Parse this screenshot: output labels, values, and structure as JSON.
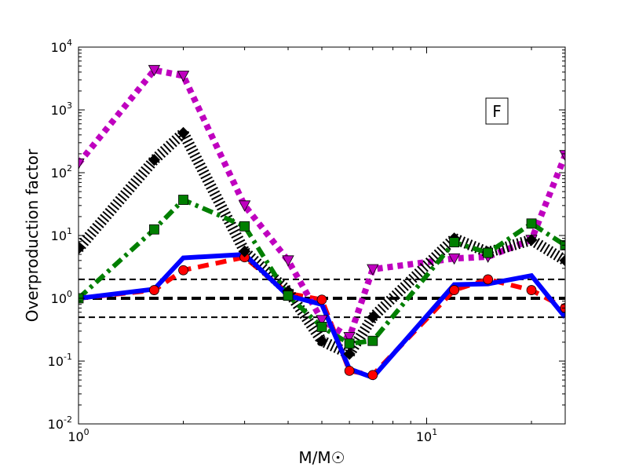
{
  "chart_data": {
    "type": "line",
    "xscale": "log",
    "yscale": "log",
    "xlim": [
      1,
      25
    ],
    "ylim": [
      0.01,
      10000
    ],
    "xlabel": "M/M☉",
    "ylabel": "Overproduction factor",
    "annotation": "F",
    "grid": false,
    "x_ticks": [
      {
        "value": 1,
        "base": "10",
        "exp": "0"
      },
      {
        "value": 10,
        "base": "10",
        "exp": "1"
      }
    ],
    "y_ticks": [
      {
        "value": 0.01,
        "base": "10",
        "exp": "-2"
      },
      {
        "value": 0.1,
        "base": "10",
        "exp": "-1"
      },
      {
        "value": 1,
        "base": "10",
        "exp": "0"
      },
      {
        "value": 10,
        "base": "10",
        "exp": "1"
      },
      {
        "value": 100,
        "base": "10",
        "exp": "2"
      },
      {
        "value": 1000,
        "base": "10",
        "exp": "3"
      },
      {
        "value": 10000,
        "base": "10",
        "exp": "4"
      }
    ],
    "reference_lines": [
      {
        "y": 2.0,
        "color": "#000000",
        "dash": "dashed"
      },
      {
        "y": 1.0,
        "color": "#000000",
        "dash": "dashed-thick"
      },
      {
        "y": 0.5,
        "color": "#000000",
        "dash": "dashed"
      }
    ],
    "series": [
      {
        "color": "#ff0000",
        "style": "dashed",
        "marker": "circle",
        "x": [
          1.0,
          1.65,
          2.0,
          3.0,
          4.0,
          5.0,
          6.0,
          7.0,
          12.0,
          15.0,
          20.0,
          25.0
        ],
        "y": [
          1.0,
          1.35,
          2.8,
          4.5,
          1.2,
          0.95,
          0.07,
          0.06,
          1.35,
          2.0,
          1.35,
          0.7
        ]
      },
      {
        "color": "#bf00bf",
        "style": "dotted",
        "marker": "triangle-down",
        "x": [
          1.0,
          1.65,
          2.0,
          3.0,
          4.0,
          5.0,
          6.0,
          7.0,
          12.0,
          15.0,
          20.0,
          25.0
        ],
        "y": [
          140,
          4300,
          3500,
          30,
          4.0,
          0.45,
          0.24,
          2.9,
          4.3,
          4.6,
          8.5,
          190
        ]
      },
      {
        "color": "#000000",
        "style": "hatched",
        "marker": "diamond",
        "x": [
          1.0,
          1.65,
          2.0,
          3.0,
          4.0,
          5.0,
          6.0,
          7.0,
          12.0,
          15.0,
          20.0,
          25.0
        ],
        "y": [
          6.2,
          160,
          430,
          5.6,
          1.3,
          0.21,
          0.13,
          0.5,
          9.0,
          5.4,
          8.5,
          4.0
        ]
      },
      {
        "color": "#007f00",
        "style": "dashdot",
        "marker": "square",
        "x": [
          1.0,
          1.65,
          2.0,
          3.0,
          4.0,
          5.0,
          6.0,
          7.0,
          12.0,
          15.0,
          20.0,
          25.0
        ],
        "y": [
          1.0,
          12.5,
          37,
          14,
          1.1,
          0.35,
          0.19,
          0.21,
          7.8,
          5.3,
          15.5,
          7.0
        ]
      },
      {
        "color": "#0000ff",
        "style": "solid",
        "marker": "none",
        "x": [
          1.0,
          1.65,
          2.0,
          3.0,
          4.0,
          5.0,
          6.0,
          7.0,
          12.0,
          15.0,
          20.0,
          25.0
        ],
        "y": [
          1.0,
          1.4,
          4.4,
          5.0,
          1.1,
          0.8,
          0.075,
          0.055,
          1.65,
          1.7,
          2.3,
          0.5
        ]
      }
    ]
  }
}
